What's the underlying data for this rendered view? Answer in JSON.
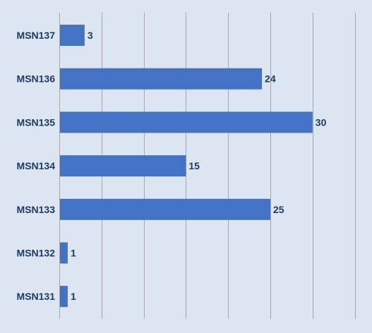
{
  "chart_data": {
    "type": "bar",
    "orientation": "horizontal",
    "categories": [
      "MSN137",
      "MSN136",
      "MSN135",
      "MSN134",
      "MSN133",
      "MSN132",
      "MSN131"
    ],
    "values": [
      3,
      24,
      30,
      15,
      25,
      1,
      1
    ],
    "xlim": [
      0,
      35
    ],
    "grid": true,
    "legend": "none",
    "title": "",
    "xlabel": "",
    "ylabel": "",
    "colors": {
      "bar": "#4472c4",
      "label": "#1f3864",
      "grid": "#a6a6a6",
      "background": "#dce6f2"
    }
  }
}
